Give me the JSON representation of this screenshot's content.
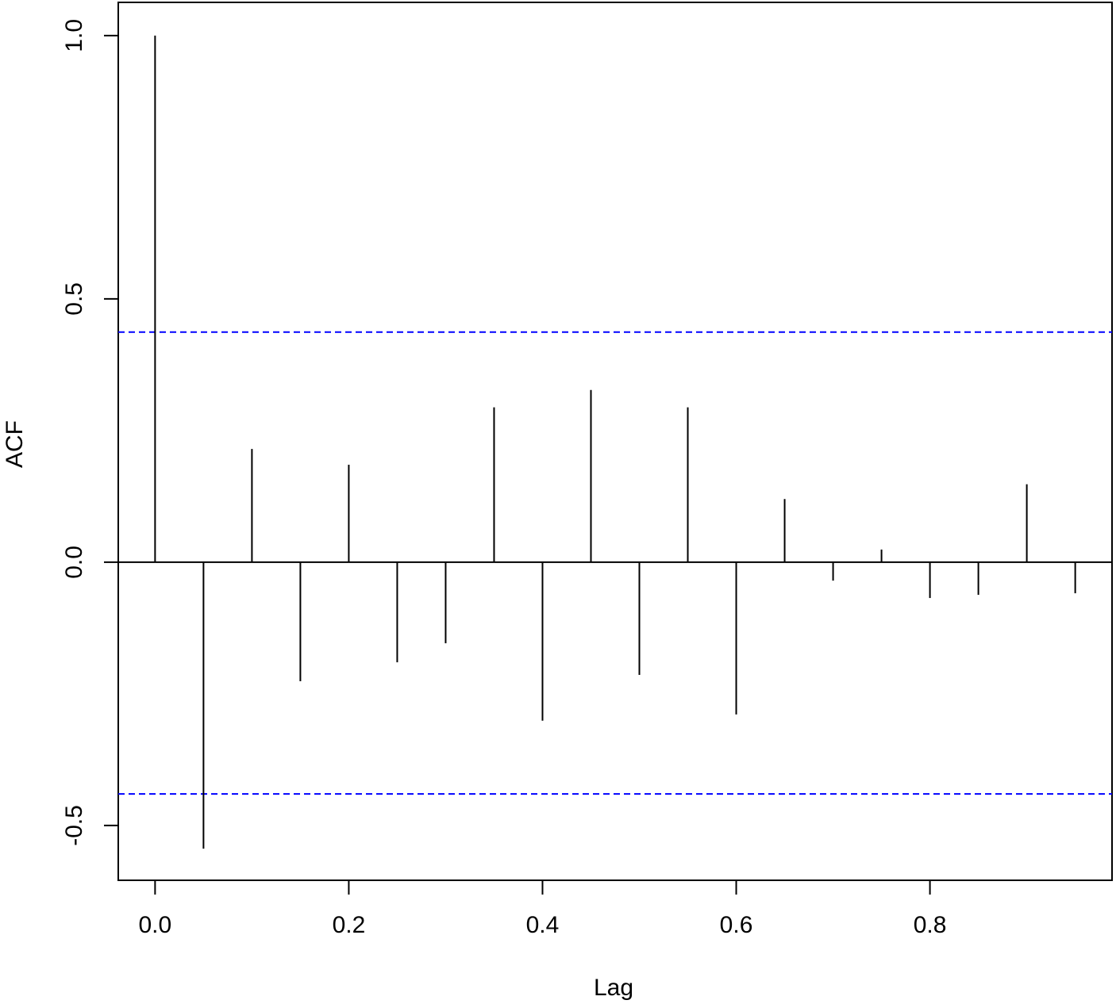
{
  "chart_data": {
    "type": "stem",
    "xlabel": "Lag",
    "ylabel": "ACF",
    "x": [
      0,
      0.05,
      0.1,
      0.15,
      0.2,
      0.25,
      0.3,
      0.35,
      0.4,
      0.45,
      0.5,
      0.55,
      0.6,
      0.65,
      0.7,
      0.75,
      0.8,
      0.85,
      0.9,
      0.95
    ],
    "values": [
      1.0,
      -0.544,
      0.215,
      -0.226,
      0.185,
      -0.19,
      -0.154,
      0.294,
      -0.301,
      0.327,
      -0.214,
      0.294,
      -0.289,
      0.12,
      -0.035,
      0.024,
      -0.068,
      -0.062,
      0.148,
      -0.059
    ],
    "color": "#000000",
    "ci_lines": [
      0.437,
      -0.44
    ],
    "ci_color": "#0000ff",
    "xlim": [
      -0.038,
      0.988
    ],
    "ylim": [
      -0.604,
      1.063
    ],
    "xticks": [
      {
        "value": 0,
        "label": "0.0"
      },
      0.2,
      0.4,
      0.6,
      0.8
    ],
    "yticks": [
      -0.5,
      {
        "value": 0,
        "label": "0.0"
      },
      0.5,
      {
        "value": 1,
        "label": "1.0"
      }
    ]
  }
}
